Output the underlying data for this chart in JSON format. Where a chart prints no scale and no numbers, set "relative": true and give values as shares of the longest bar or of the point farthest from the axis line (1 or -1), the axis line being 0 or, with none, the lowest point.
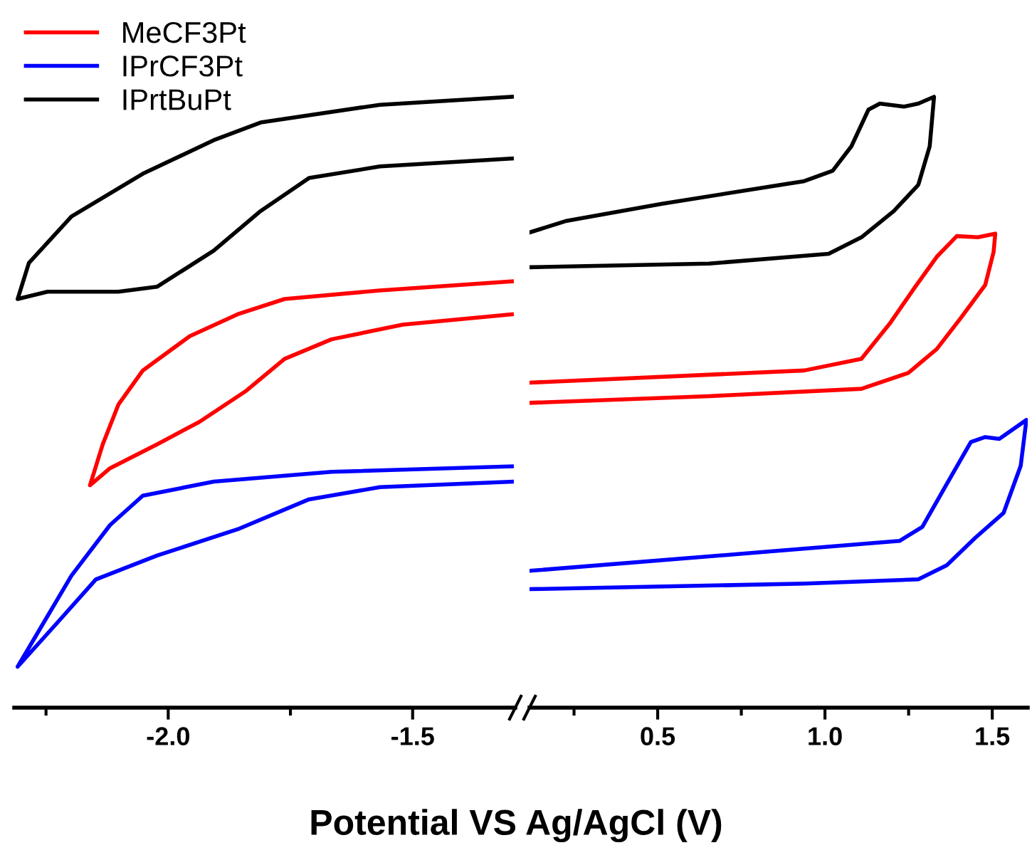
{
  "chart_data": [
    {
      "type": "line",
      "relative": true,
      "xlabel": "Potential VS Ag/AgCl (V)",
      "legend": "top left",
      "tick_labels": "x",
      "xlim": [
        -2.315,
        -1.29
      ],
      "xticks": [
        {
          "value": -2.25,
          "label": null
        },
        {
          "value": -2.0,
          "label": "-2.0"
        },
        {
          "value": -1.75,
          "label": null
        },
        {
          "value": -1.5,
          "label": "-1.5"
        }
      ],
      "series": [
        {
          "name": "MeCF3Pt",
          "color": "#ff0000",
          "x": [
            -1.297,
            -1.567,
            -1.762,
            -1.858,
            -1.956,
            -2.052,
            -2.102,
            -2.134,
            -2.16,
            -2.119,
            -2.023,
            -1.936,
            -1.84,
            -1.762,
            -1.666,
            -1.52,
            -1.297
          ],
          "values": [
            0.698,
            0.683,
            0.669,
            0.644,
            0.608,
            0.552,
            0.496,
            0.431,
            0.364,
            0.392,
            0.431,
            0.468,
            0.519,
            0.571,
            0.603,
            0.627,
            0.644
          ]
        },
        {
          "name": "IPrCF3Pt",
          "color": "#0000ff",
          "x": [
            -1.297,
            -1.666,
            -1.907,
            -2.052,
            -2.119,
            -2.198,
            -2.308,
            -2.227,
            -2.148,
            -2.023,
            -1.858,
            -1.712,
            -1.567,
            -1.297
          ],
          "values": [
            0.395,
            0.386,
            0.37,
            0.347,
            0.299,
            0.216,
            0.067,
            0.139,
            0.21,
            0.249,
            0.292,
            0.341,
            0.361,
            0.37
          ]
        },
        {
          "name": "IPrtBuPt",
          "color": "#000000",
          "x": [
            -1.297,
            -1.567,
            -1.811,
            -1.907,
            -2.052,
            -2.198,
            -2.285,
            -2.308,
            -2.247,
            -2.102,
            -2.023,
            -1.907,
            -1.811,
            -1.712,
            -1.567,
            -1.297
          ],
          "values": [
            1.0,
            0.987,
            0.958,
            0.929,
            0.874,
            0.804,
            0.728,
            0.669,
            0.681,
            0.681,
            0.689,
            0.748,
            0.813,
            0.867,
            0.886,
            0.899
          ]
        }
      ]
    },
    {
      "type": "line",
      "relative": true,
      "tick_labels": "x",
      "xlim": [
        0.117,
        1.606
      ],
      "xticks": [
        {
          "value": 0.25,
          "label": null
        },
        0.5,
        {
          "value": 0.75,
          "label": null
        },
        {
          "value": 1.0,
          "label": "1.0"
        },
        {
          "value": 1.25,
          "label": null
        },
        1.5
      ],
      "series": [
        {
          "color": "#ff0000",
          "x": [
            0.117,
            0.938,
            1.109,
            1.194,
            1.266,
            1.334,
            1.394,
            1.457,
            1.509,
            1.504,
            1.479,
            1.406,
            1.334,
            1.249,
            1.109,
            0.653,
            0.117
          ],
          "values": [
            0.532,
            0.552,
            0.571,
            0.629,
            0.686,
            0.738,
            0.772,
            0.77,
            0.776,
            0.746,
            0.692,
            0.638,
            0.587,
            0.548,
            0.522,
            0.51,
            0.499
          ]
        },
        {
          "color": "#0000ff",
          "x": [
            0.117,
            0.798,
            1.223,
            1.291,
            1.364,
            1.436,
            1.479,
            1.521,
            1.602,
            1.585,
            1.534,
            1.449,
            1.364,
            1.279,
            0.938,
            0.117
          ],
          "values": [
            0.224,
            0.254,
            0.273,
            0.296,
            0.366,
            0.435,
            0.443,
            0.44,
            0.471,
            0.396,
            0.319,
            0.278,
            0.233,
            0.21,
            0.203,
            0.194
          ]
        },
        {
          "color": "#000000",
          "x": [
            0.117,
            0.228,
            0.513,
            0.938,
            1.023,
            1.079,
            1.13,
            1.164,
            1.236,
            1.279,
            1.326,
            1.313,
            1.279,
            1.206,
            1.109,
            1.011,
            0.653,
            0.117
          ],
          "values": [
            0.778,
            0.797,
            0.825,
            0.862,
            0.879,
            0.919,
            0.979,
            0.989,
            0.984,
            0.989,
            1.0,
            0.919,
            0.856,
            0.813,
            0.77,
            0.743,
            0.727,
            0.721
          ]
        }
      ]
    }
  ]
}
